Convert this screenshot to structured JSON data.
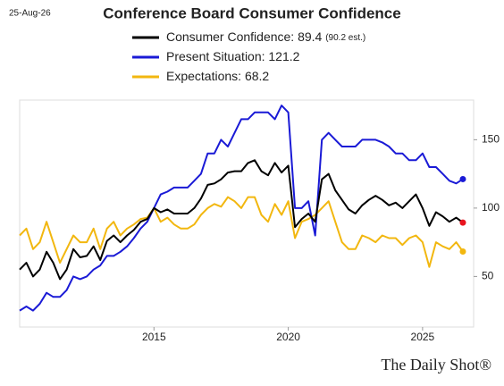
{
  "chart_data": {
    "type": "line",
    "title": "Conference Board Consumer Confidence",
    "date_label": "25-Aug-26",
    "source": "The Daily Shot®",
    "x": [
      2010,
      2010.25,
      2010.5,
      2010.75,
      2011,
      2011.25,
      2011.5,
      2011.75,
      2012,
      2012.25,
      2012.5,
      2012.75,
      2013,
      2013.25,
      2013.5,
      2013.75,
      2014,
      2014.25,
      2014.5,
      2014.75,
      2015,
      2015.25,
      2015.5,
      2015.75,
      2016,
      2016.25,
      2016.5,
      2016.75,
      2017,
      2017.25,
      2017.5,
      2017.75,
      2018,
      2018.25,
      2018.5,
      2018.75,
      2019,
      2019.25,
      2019.5,
      2019.75,
      2020,
      2020.25,
      2020.5,
      2020.75,
      2021,
      2021.25,
      2021.5,
      2021.75,
      2022,
      2022.25,
      2022.5,
      2022.75,
      2023,
      2023.25,
      2023.5,
      2023.75,
      2024,
      2024.25,
      2024.5,
      2024.75,
      2025,
      2025.25,
      2025.5,
      2025.75,
      2026,
      2026.25,
      2026.5
    ],
    "series": [
      {
        "name": "Consumer Confidence: 89.4",
        "legend_note": "(90.2 est.)",
        "color": "#000000",
        "end_color": "#e8141e",
        "values": [
          55,
          60,
          50,
          55,
          68,
          60,
          48,
          55,
          70,
          64,
          65,
          72,
          62,
          76,
          80,
          75,
          80,
          84,
          90,
          92,
          100,
          97,
          99,
          96,
          96,
          96,
          100,
          107,
          117,
          118,
          121,
          126,
          127,
          127,
          133,
          135,
          127,
          124,
          133,
          126,
          131,
          86,
          92,
          96,
          90,
          121,
          125,
          113,
          106,
          99,
          96,
          102,
          106,
          109,
          106,
          102,
          104,
          100,
          105,
          110,
          100,
          87,
          97,
          94,
          90,
          93,
          89.4
        ]
      },
      {
        "name": "Present Situation: 121.2",
        "color": "#1a1ad6",
        "end_color": "#1a1ad6",
        "values": [
          25,
          28,
          25,
          30,
          38,
          35,
          35,
          40,
          50,
          48,
          50,
          55,
          58,
          65,
          65,
          68,
          72,
          78,
          85,
          90,
          100,
          110,
          112,
          115,
          115,
          115,
          120,
          125,
          140,
          140,
          150,
          145,
          155,
          165,
          165,
          170,
          170,
          170,
          165,
          175,
          170,
          100,
          100,
          105,
          80,
          150,
          155,
          150,
          145,
          145,
          145,
          150,
          150,
          150,
          148,
          145,
          140,
          140,
          135,
          135,
          140,
          130,
          130,
          125,
          120,
          118,
          121.2
        ]
      },
      {
        "name": "Expectations: 68.2",
        "color": "#f2b70f",
        "end_color": "#f2b70f",
        "values": [
          80,
          85,
          70,
          75,
          90,
          75,
          60,
          70,
          80,
          75,
          75,
          85,
          70,
          85,
          90,
          80,
          85,
          88,
          92,
          93,
          100,
          90,
          93,
          88,
          85,
          85,
          88,
          95,
          100,
          103,
          101,
          108,
          105,
          100,
          108,
          108,
          95,
          90,
          103,
          95,
          105,
          78,
          90,
          92,
          95,
          100,
          105,
          90,
          75,
          70,
          70,
          80,
          78,
          75,
          80,
          78,
          78,
          73,
          78,
          80,
          75,
          57,
          75,
          72,
          70,
          75,
          68.2
        ]
      }
    ],
    "xlim": [
      2010,
      2026.9
    ],
    "xticks": [
      2015,
      2020,
      2025
    ],
    "ylim": [
      13,
      179
    ],
    "yticks": [
      50,
      100,
      150
    ],
    "y_axis_side": "right"
  }
}
